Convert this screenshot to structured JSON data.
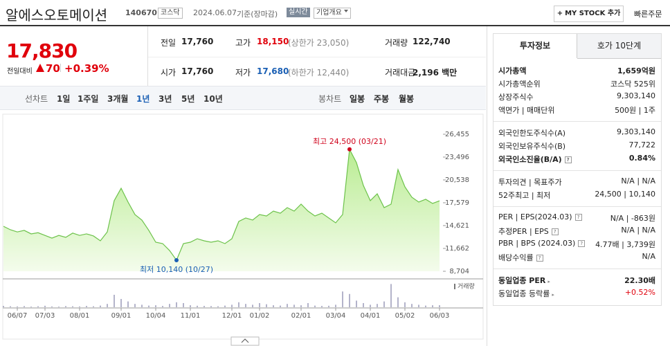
{
  "header": {
    "title": "알에스오토메이션",
    "code": "140670",
    "market": "코스닥",
    "date": "2024.06.07",
    "basis": "기준(장마감)",
    "realtime": "실시간",
    "company_overview": "기업개요",
    "my_stock": "MY STOCK 추가",
    "quick_order": "빠른주문"
  },
  "price": {
    "current": "17,830",
    "change_label": "전일대비",
    "change": "70",
    "change_pct": "+0.39%"
  },
  "quote_table": {
    "rows": [
      [
        {
          "label": "전일",
          "value": "17,760"
        },
        {
          "label": "고가",
          "value": "18,150",
          "note": "(상한가 23,050)",
          "color": "#e0000b"
        },
        {
          "label": "거래량",
          "value": "122,740"
        }
      ],
      [
        {
          "label": "시가",
          "value": "17,760"
        },
        {
          "label": "저가",
          "value": "17,680",
          "note": "(하한가 12,440)",
          "color": "#1a5fb4"
        },
        {
          "label": "거래대금",
          "value": "2,196 백만"
        }
      ]
    ]
  },
  "tabs": {
    "line_chart": "선차트",
    "periods": [
      "1일",
      "1주일",
      "3개월",
      "1년",
      "3년",
      "5년",
      "10년"
    ],
    "selected": 3,
    "candle_chart": "봉차트",
    "candles": [
      "일봉",
      "주봉",
      "월봉"
    ]
  },
  "chart_data": {
    "type": "area",
    "categories": [
      null,
      null,
      "06/07",
      null,
      null,
      null,
      "07/03",
      null,
      null,
      null,
      null,
      "08/01",
      null,
      null,
      null,
      null,
      null,
      "09/01",
      null,
      null,
      null,
      null,
      "10/04",
      null,
      null,
      null,
      null,
      "11/01",
      null,
      null,
      null,
      null,
      null,
      "12/01",
      null,
      null,
      null,
      "01/02",
      null,
      null,
      null,
      null,
      null,
      "02/01",
      null,
      null,
      null,
      null,
      "03/04",
      null,
      null,
      null,
      null,
      "04/01",
      null,
      null,
      null,
      null,
      "05/02",
      null,
      null,
      null,
      null,
      "06/03"
    ],
    "values": [
      14531,
      14083,
      13800,
      14000,
      13550,
      13700,
      13350,
      13000,
      13350,
      13100,
      13650,
      13350,
      13550,
      13280,
      12650,
      13800,
      17850,
      19460,
      17670,
      16050,
      15340,
      14000,
      12470,
      12290,
      11390,
      10140,
      12290,
      12470,
      12920,
      12650,
      12470,
      12650,
      12290,
      12920,
      15160,
      15610,
      15340,
      16050,
      15870,
      16500,
      16230,
      16950,
      16500,
      17400,
      16500,
      15870,
      16230,
      15610,
      14980,
      16050,
      24500,
      22780,
      19820,
      17850,
      18740,
      16950,
      17400,
      21880,
      19640,
      18300,
      17670,
      18030,
      17490,
      17830
    ],
    "color": "#6cc24a",
    "ylim": [
      8704,
      26455
    ],
    "yticks": [
      {
        "value": 26455,
        "label": "26,455"
      },
      {
        "value": 23496,
        "label": "23,496"
      },
      {
        "value": 20538,
        "label": "20,538"
      },
      {
        "value": 17579,
        "label": "17,579"
      },
      {
        "value": 14621,
        "label": "14,621"
      },
      {
        "value": 11662,
        "label": "11,662"
      },
      {
        "value": 8704,
        "label": "8,704"
      }
    ],
    "annotations": [
      {
        "label": "최고 24,500 (03/21)",
        "value": 24500,
        "color": "#d0021b"
      },
      {
        "label": "최저 10,140 (10/27)",
        "value": 10140,
        "color": "#1a5fb4"
      }
    ],
    "volume": {
      "name": "거래량",
      "color": "#9a9ab8",
      "ylim": [
        0,
        1500000
      ],
      "values": [
        80000,
        60000,
        50000,
        70000,
        40000,
        60000,
        90000,
        50000,
        40000,
        70000,
        60000,
        50000,
        80000,
        60000,
        100000,
        200000,
        750000,
        500000,
        350000,
        200000,
        150000,
        100000,
        120000,
        80000,
        200000,
        300000,
        250000,
        120000,
        90000,
        80000,
        70000,
        60000,
        100000,
        150000,
        300000,
        200000,
        150000,
        250000,
        180000,
        120000,
        100000,
        200000,
        150000,
        120000,
        250000,
        100000,
        80000,
        90000,
        150000,
        950000,
        800000,
        400000,
        250000,
        150000,
        200000,
        350000,
        1400000,
        600000,
        300000,
        200000,
        150000,
        100000,
        120000,
        122740
      ]
    }
  },
  "invest_panel": {
    "tabs": [
      "투자정보",
      "호가 10단계"
    ],
    "groups": [
      [
        {
          "label": "시가총액",
          "value": "1,659억원",
          "bold": true
        },
        {
          "label": "시가총액순위",
          "value": "코스닥 525위"
        },
        {
          "label": "상장주식수",
          "value": "9,303,140"
        },
        {
          "label": "액면가 | 매매단위",
          "value": "500원 | 1주"
        }
      ],
      [
        {
          "label": "외국인한도주식수(A)",
          "value": "9,303,140"
        },
        {
          "label": "외국인보유주식수(B)",
          "value": "77,722"
        },
        {
          "label": "외국인소진율(B/A)",
          "value": "0.84%",
          "bold": true,
          "help": true
        }
      ],
      [
        {
          "label": "투자의견 | 목표주가",
          "value": "N/A | N/A"
        },
        {
          "label": "52주최고 | 최저",
          "value": "24,500 | 10,140"
        }
      ],
      [
        {
          "label": "PER | EPS(2024.03)",
          "value": "N/A | -863원",
          "help": true
        },
        {
          "label": "추정PER | EPS",
          "value": "N/A | N/A",
          "help": true
        },
        {
          "label": "PBR | BPS (2024.03)",
          "value": "4.77배 | 3,739원",
          "help": true
        },
        {
          "label": "배당수익률",
          "value": "N/A",
          "help": true
        }
      ],
      [
        {
          "label": "동일업종 PER",
          "value": "22.30배",
          "bold": true,
          "arrow": true
        },
        {
          "label": "동일업종 등락률",
          "value": "+0.52%",
          "arrow": true,
          "color": "#e0000b"
        }
      ]
    ]
  }
}
